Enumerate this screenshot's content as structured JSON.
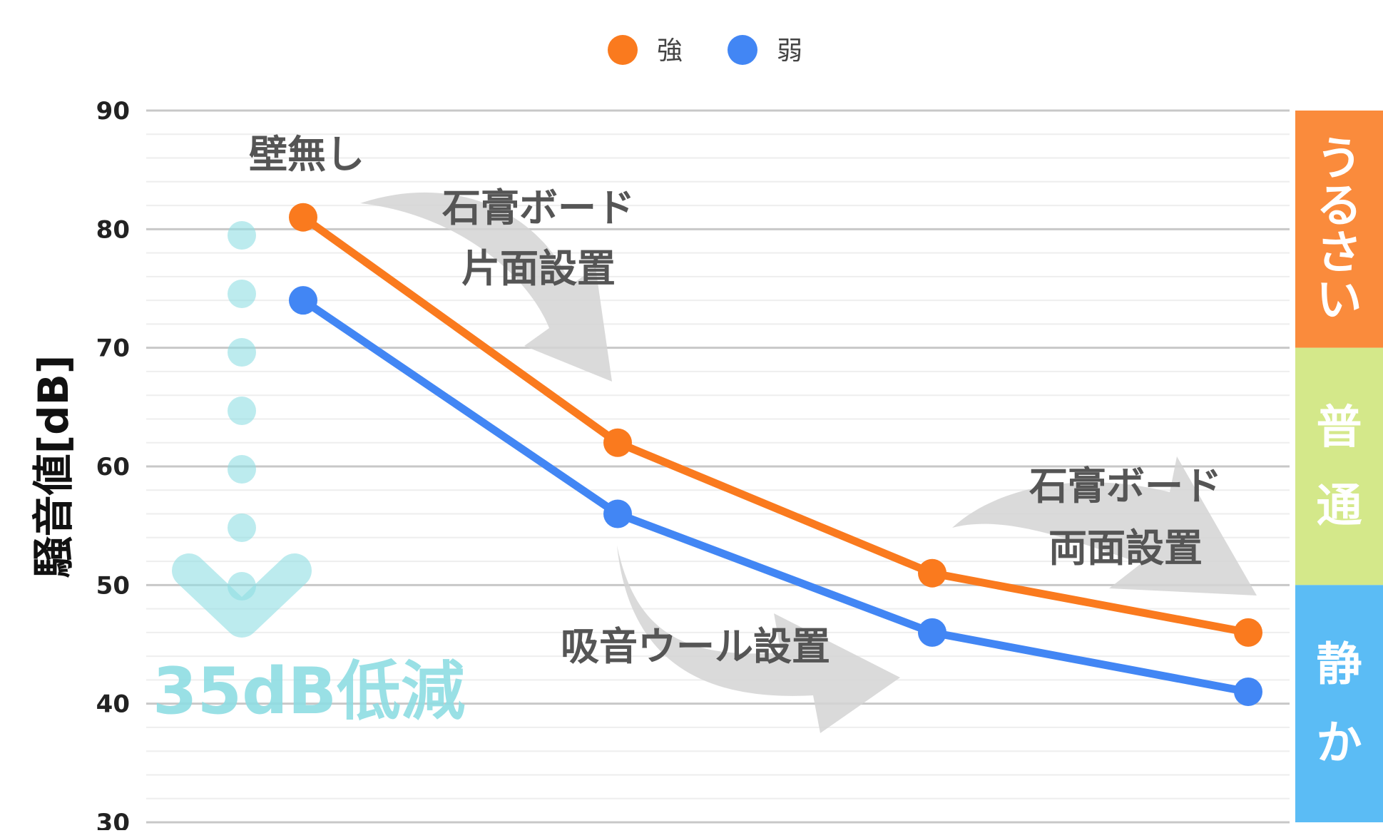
{
  "chart_data": {
    "type": "line",
    "categories": [
      "壁無し",
      "石膏ボード片面設置",
      "吸音ウール設置",
      "石膏ボード両面設置"
    ],
    "series": [
      {
        "name": "強",
        "color": "#fa7a1e",
        "values": [
          81,
          62,
          51,
          46
        ]
      },
      {
        "name": "弱",
        "color": "#4286f4",
        "values": [
          74,
          56,
          46,
          41
        ]
      }
    ],
    "ylabel": "騒音値[dB]",
    "xlabel": "",
    "ylim": [
      30,
      90
    ],
    "yticks": [
      90,
      80,
      70,
      60,
      50,
      40,
      30
    ],
    "grid": true,
    "legend_position": "top-center",
    "annotations": [
      {
        "id": "no-wall",
        "lines": [
          "壁無し"
        ]
      },
      {
        "id": "one-side",
        "lines": [
          "石膏ボード",
          "片面設置"
        ]
      },
      {
        "id": "wool",
        "lines": [
          "吸音ウール設置"
        ]
      },
      {
        "id": "both-sides",
        "lines": [
          "石膏ボード",
          "両面設置"
        ]
      },
      {
        "id": "reduction",
        "lines": [
          "35dB低減"
        ]
      }
    ],
    "level_bands": [
      {
        "label": "うるさい",
        "color": "#fa8b3c",
        "from": 70,
        "to": 90
      },
      {
        "label": "普通",
        "color": "#d4e88a",
        "from": 50,
        "to": 70
      },
      {
        "label": "静か",
        "color": "#5bbcf5",
        "from": 30,
        "to": 50
      }
    ],
    "colors": {
      "grid_major": "#c8c8c8",
      "grid_minor": "#eeeeee",
      "arrow": "#d4d4d4",
      "reduction": "#8fdde3"
    }
  }
}
